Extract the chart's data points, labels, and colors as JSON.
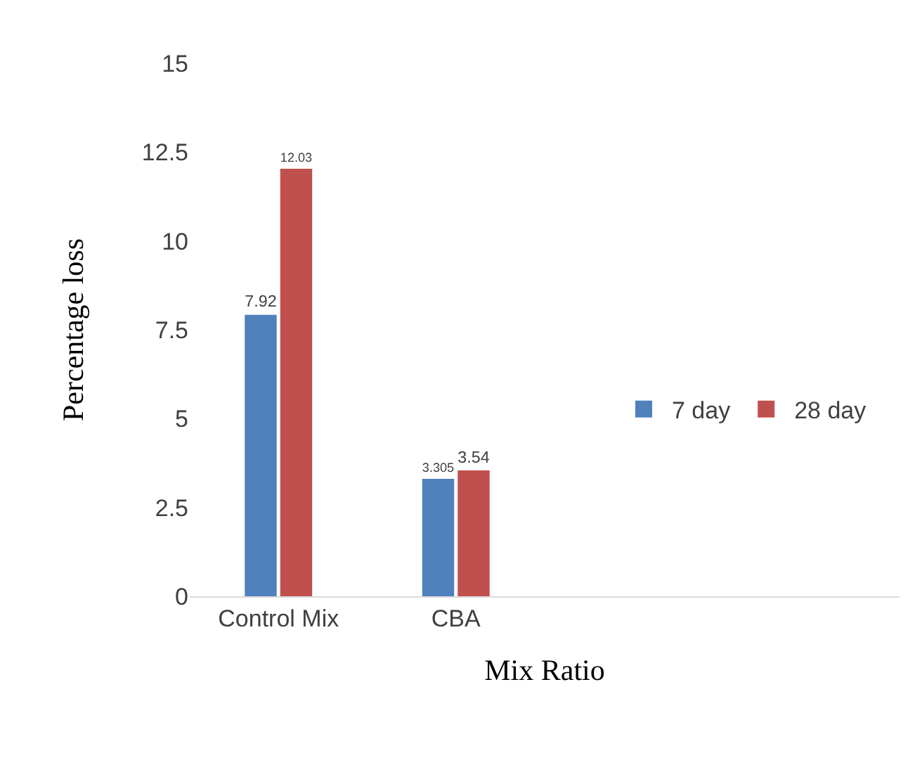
{
  "chart_data": {
    "type": "bar",
    "xlabel": "Mix Ratio",
    "ylabel": "Percentage loss",
    "categories": [
      "Control Mix",
      "CBA",
      null,
      null
    ],
    "series": [
      {
        "name": "7 day",
        "color": "#4f81bd",
        "values": [
          7.92,
          3.305,
          null,
          null
        ]
      },
      {
        "name": "28 day",
        "color": "#c0504d",
        "values": [
          12.03,
          3.54,
          null,
          null
        ]
      }
    ],
    "ylim": [
      0,
      15
    ],
    "yticks": [
      0,
      2.5,
      5,
      7.5,
      10,
      12.5,
      15
    ],
    "grid": false,
    "legend": "right",
    "data_labels": true
  }
}
